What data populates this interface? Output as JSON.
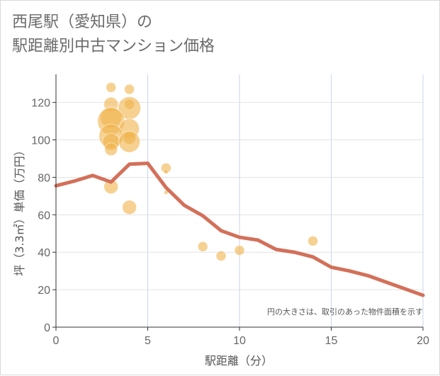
{
  "title_line1": "西尾駅（愛知県）の",
  "title_line2": "駅距離別中古マンション価格",
  "chart_data": {
    "type": "scatter",
    "xlabel": "駅距離（分）",
    "ylabel": "坪（3.3㎡）単価（万円）",
    "note": "円の大きさは、取引のあった物件面積を示す",
    "xlim": [
      0,
      20
    ],
    "ylim": [
      0,
      135
    ],
    "x_ticks": [
      0,
      5,
      10,
      15,
      20
    ],
    "y_ticks": [
      0,
      20,
      40,
      60,
      80,
      100,
      120
    ],
    "grid": true,
    "colors": {
      "bubble": "#f0b24a",
      "line": "#d3705a",
      "grid": "#c9d6e8",
      "axis": "#333333"
    },
    "bubbles": [
      {
        "x": 3,
        "y": 128,
        "size": 7
      },
      {
        "x": 4,
        "y": 127,
        "size": 7
      },
      {
        "x": 3,
        "y": 119,
        "size": 10
      },
      {
        "x": 4,
        "y": 119,
        "size": 7
      },
      {
        "x": 4,
        "y": 117,
        "size": 16
      },
      {
        "x": 3,
        "y": 112,
        "size": 15
      },
      {
        "x": 3,
        "y": 110,
        "size": 19
      },
      {
        "x": 4,
        "y": 106,
        "size": 14
      },
      {
        "x": 3,
        "y": 102,
        "size": 17
      },
      {
        "x": 4,
        "y": 101,
        "size": 9
      },
      {
        "x": 3,
        "y": 99,
        "size": 12
      },
      {
        "x": 4,
        "y": 99,
        "size": 15
      },
      {
        "x": 3,
        "y": 95,
        "size": 9
      },
      {
        "x": 6,
        "y": 85,
        "size": 7
      },
      {
        "x": 6,
        "y": 83,
        "size": 3
      },
      {
        "x": 3,
        "y": 75,
        "size": 10
      },
      {
        "x": 6,
        "y": 72,
        "size": 3
      },
      {
        "x": 4,
        "y": 64,
        "size": 10
      },
      {
        "x": 14,
        "y": 46,
        "size": 7
      },
      {
        "x": 8,
        "y": 43,
        "size": 7
      },
      {
        "x": 10,
        "y": 41,
        "size": 7
      },
      {
        "x": 9,
        "y": 38,
        "size": 7
      }
    ],
    "line": {
      "x": [
        0,
        1,
        2,
        3,
        4,
        5,
        6,
        7,
        8,
        9,
        10,
        11,
        12,
        13,
        14,
        15,
        16,
        17,
        18,
        19,
        20
      ],
      "y": [
        75.5,
        78,
        81,
        77.5,
        87,
        87.5,
        74.5,
        65,
        59.5,
        51.5,
        48,
        46.5,
        41.5,
        40,
        37.5,
        32,
        30,
        27.5,
        24,
        20.5,
        17
      ]
    }
  }
}
